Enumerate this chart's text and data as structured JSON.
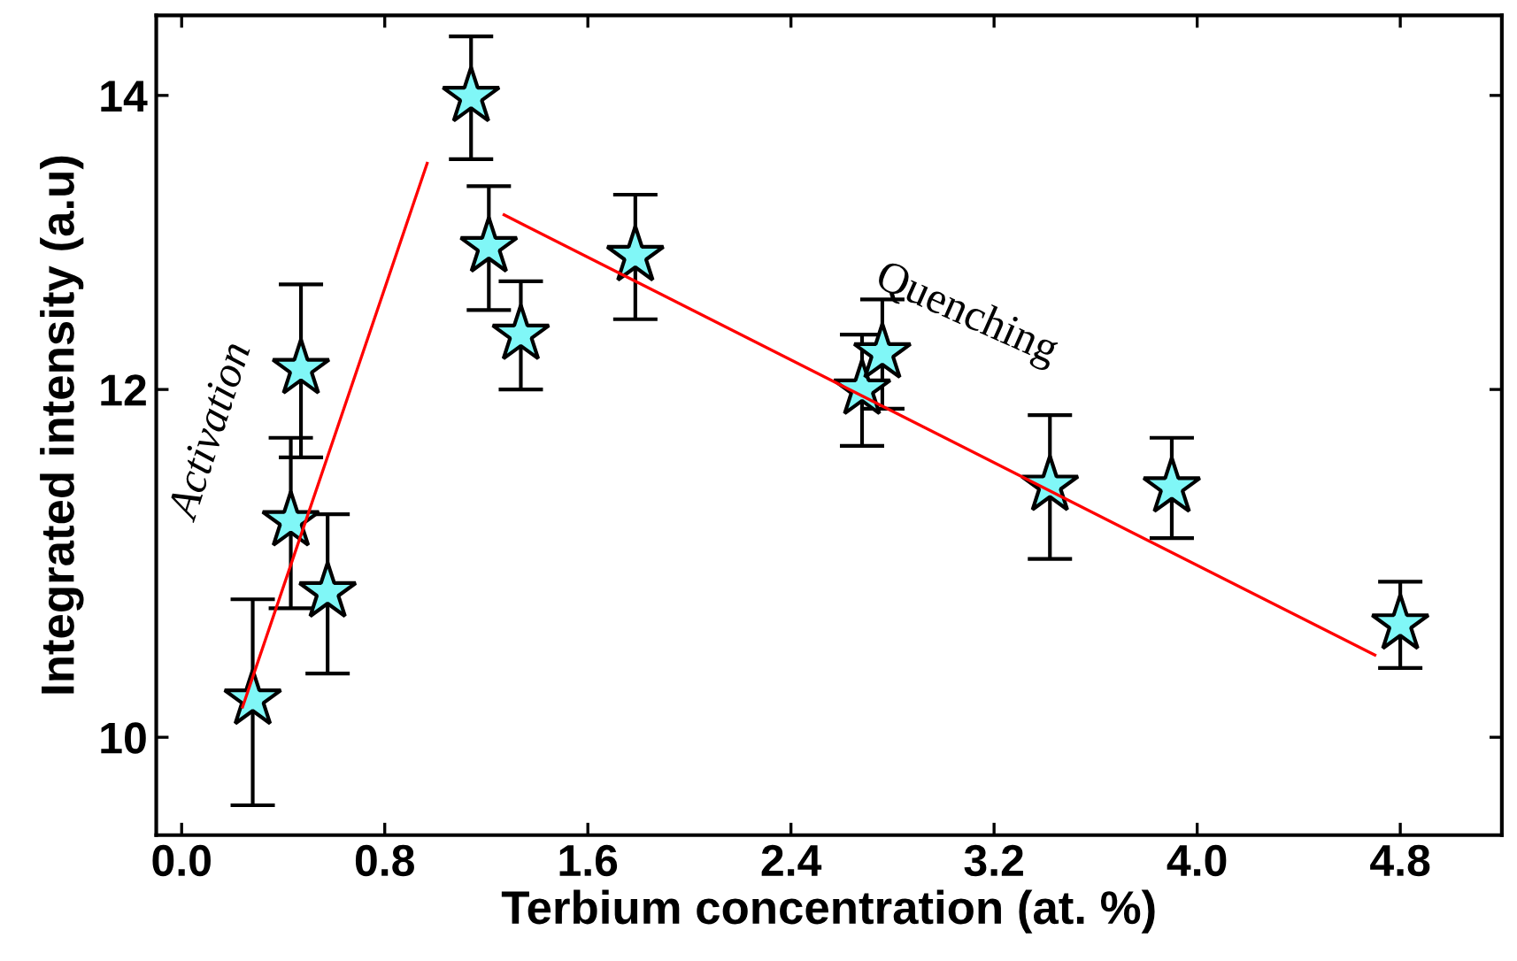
{
  "chart_data": {
    "type": "scatter",
    "xlabel": "Terbium concentration (at. %)",
    "ylabel": "Integrated intensity (a.u)",
    "xlim": [
      -0.1,
      5.2
    ],
    "xticks": [
      {
        "value": 0,
        "label": "0.0"
      },
      0.8,
      1.6,
      2.4,
      3.2,
      {
        "value": 4,
        "label": "4.0"
      },
      4.8
    ],
    "ylim": [
      9.5,
      14.6
    ],
    "yticks": [
      10,
      12,
      14
    ],
    "log": "y",
    "grid": false,
    "annotations": [
      "Activation",
      "Quenching"
    ],
    "series": [
      {
        "color": "#80f7f7",
        "marker": "star",
        "x": [
          0.28,
          0.47,
          0.43,
          0.575,
          1.14,
          1.21,
          1.336,
          1.787,
          2.68,
          2.76,
          3.42,
          3.9,
          4.8
        ],
        "values": [
          10.2,
          12.13,
          11.2,
          10.79,
          13.99,
          12.93,
          12.35,
          12.87,
          12.0,
          12.23,
          11.41,
          11.4,
          10.61
        ],
        "errors": [
          0.55,
          0.55,
          0.5,
          0.45,
          0.45,
          0.42,
          0.35,
          0.42,
          0.35,
          0.35,
          0.43,
          0.3,
          0.24
        ]
      },
      {
        "type": "line",
        "color": "#ff0000",
        "x": [
          0.24,
          0.967
        ],
        "values": [
          10.16,
          13.51
        ]
      },
      {
        "type": "line",
        "color": "#ff0000",
        "x": [
          1.27,
          4.7
        ],
        "values": [
          13.15,
          10.44
        ]
      }
    ]
  }
}
